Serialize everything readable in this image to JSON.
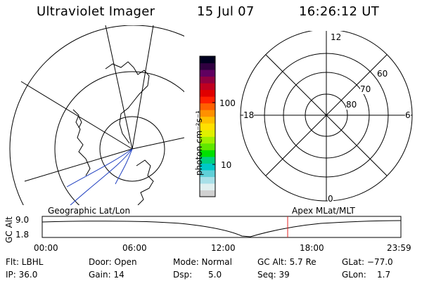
{
  "header": {
    "title": "Ultraviolet Imager",
    "date": "15 Jul 07",
    "time": "16:26:12 UT"
  },
  "colorbar": {
    "unit_label": "photon cm⁻²s⁻¹",
    "tick_100": "100",
    "tick_10": "10",
    "colors": [
      "#d0d0d0",
      "#e0f0f0",
      "#a8e0e8",
      "#60d0d8",
      "#00c8c8",
      "#00d080",
      "#00e000",
      "#60e800",
      "#a0f000",
      "#e0f000",
      "#ffe000",
      "#ffc000",
      "#ff9000",
      "#ff6000",
      "#ff2000",
      "#e00000",
      "#c00020",
      "#900040",
      "#600060",
      "#300040",
      "#000020"
    ]
  },
  "geo_panel": {
    "label": "Geographic Lat/Lon"
  },
  "polar_panel": {
    "label": "Apex MLat/MLT",
    "mlt_top": "12",
    "mlt_left": "18",
    "mlt_right": "6",
    "mlt_bottom": "0",
    "lat_60": "60",
    "lat_70": "70",
    "lat_80": "80"
  },
  "alt_plot": {
    "axis_label": "GC Alt",
    "y_top": "9.0",
    "y_bottom": "1.8",
    "x_ticks": [
      "00:00",
      "06:00",
      "12:00",
      "18:00",
      "23:59"
    ]
  },
  "footer": {
    "row1": {
      "flt": "Flt: LBHL",
      "door": "Door: Open",
      "mode": "Mode: Normal",
      "gcalt": "GC Alt: 5.7 Re",
      "glat": "GLat: −77.0"
    },
    "row2": {
      "ip": "IP: 36.0",
      "gain": "Gain: 14",
      "dsp": "Dsp:      5.0",
      "seq": "Seq: 39",
      "glon": "GLon:    1.7"
    }
  }
}
